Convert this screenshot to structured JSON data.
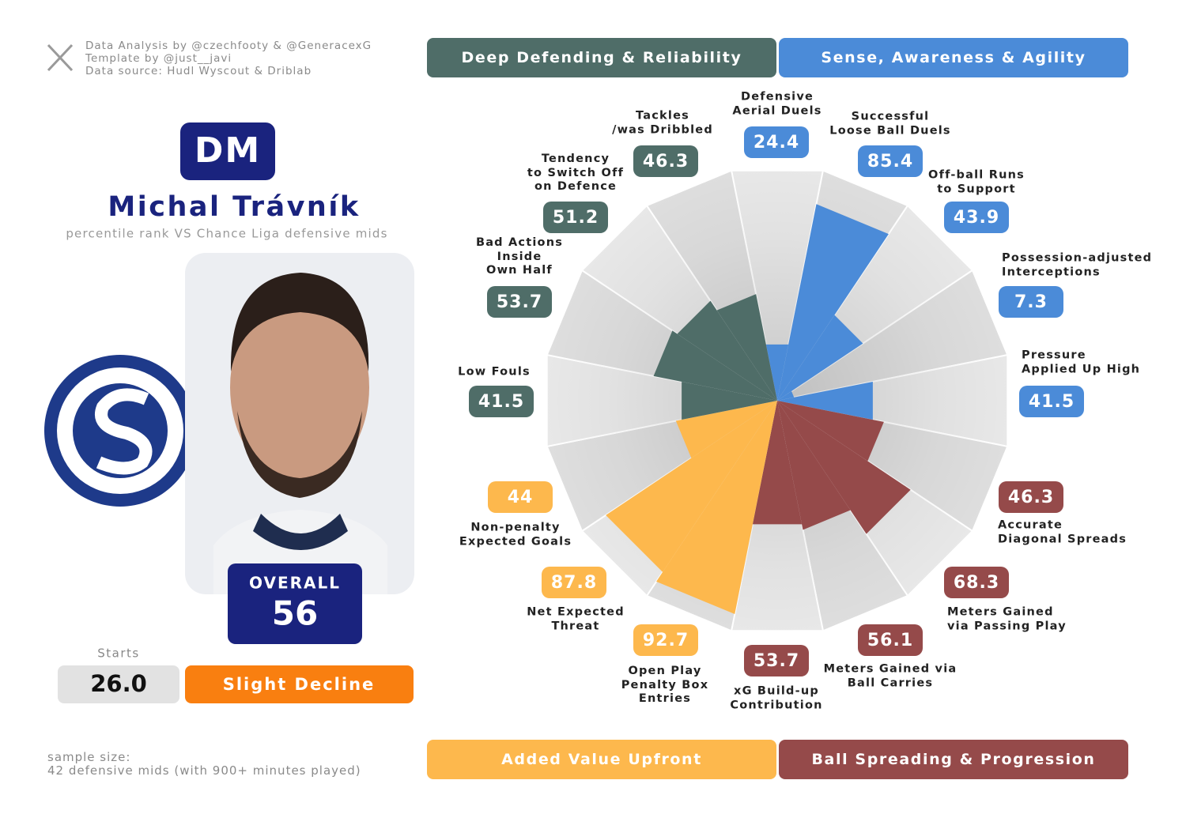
{
  "credits": [
    "Data Analysis by @czechfooty & @GeneracexG",
    "Template by @just__javi",
    "Data source: Hudl Wyscout & Driblab"
  ],
  "player": {
    "position": "DM",
    "name": "Michal Trávník",
    "subtitle": "percentile rank VS Chance Liga defensive mids",
    "overall_label": "OVERALL",
    "overall": 56,
    "starts_label": "Starts",
    "starts": "26.0",
    "trend": "Slight Decline"
  },
  "sample_size": [
    "sample size:",
    "42 defensive mids (with 900+ minutes played)"
  ],
  "chart_data": {
    "type": "pizza",
    "ylim": [
      0,
      100
    ],
    "series": [
      {
        "name": "Sense, Awareness & Agility",
        "color": "#4b8bd8",
        "categories": [
          "Defensive\nAerial Duels",
          "Successful\nLoose Ball Duels",
          "Off-ball Runs\nto Support",
          "Possession-adjusted\nInterceptions",
          "Pressure\nApplied Up High"
        ],
        "values": [
          24.4,
          85.4,
          43.9,
          7.3,
          41.5
        ]
      },
      {
        "name": "Ball Spreading & Progression",
        "color": "#954a4a",
        "categories": [
          "Accurate\nDiagonal Spreads",
          "Meters Gained\nvia Passing Play",
          "Meters Gained via\nBall Carries",
          "xG Build-up\nContribution"
        ],
        "values": [
          46.3,
          68.3,
          56.1,
          53.7
        ]
      },
      {
        "name": "Added Value Upfront",
        "color": "#fdb84d",
        "categories": [
          "Open Play\nPenalty Box\nEntries",
          "Net Expected\nThreat",
          "Non-penalty\nExpected Goals"
        ],
        "values": [
          92.7,
          87.8,
          44
        ]
      },
      {
        "name": "Deep Defending & Reliability",
        "color": "#4f6d68",
        "categories": [
          "Low Fouls",
          "Bad Actions\nInside\nOwn Half",
          "Tendency\nto Switch Off\non Defence",
          "Tackles\n/was Dribbled"
        ],
        "values": [
          41.5,
          53.7,
          51.2,
          46.3
        ]
      }
    ]
  }
}
